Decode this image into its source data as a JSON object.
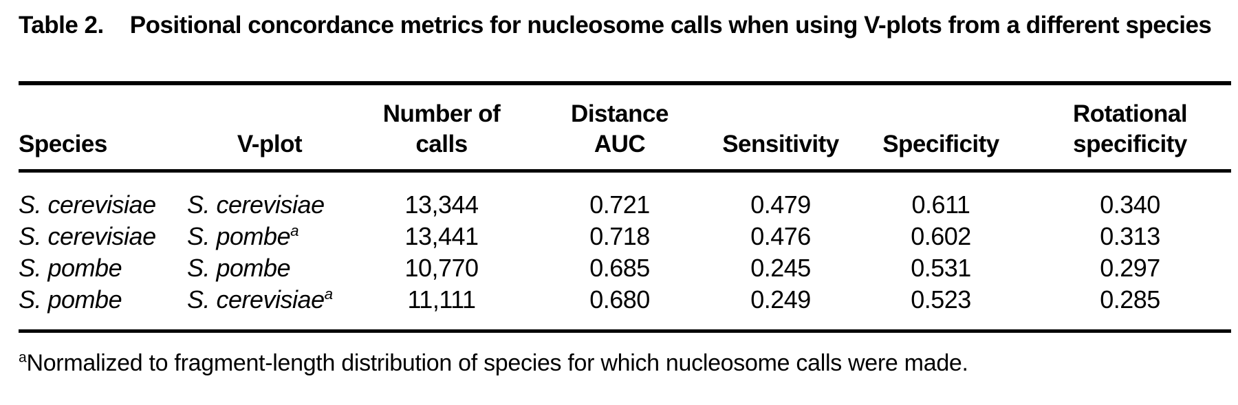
{
  "page": {
    "background_color": "#ffffff",
    "text_color": "#000000"
  },
  "caption": {
    "label": "Table 2.",
    "title": "Positional concordance metrics for nucleosome calls when using V-plots from a different species"
  },
  "table": {
    "columns": [
      "Species",
      "V-plot",
      "Number of calls",
      "Distance AUC",
      "Sensitivity",
      "Specificity",
      "Rotational specificity"
    ],
    "rows": [
      {
        "species": "S. cerevisiae",
        "vplot": "S. cerevisiae",
        "vplot_marker": "",
        "number_of_calls": "13,344",
        "distance_auc": "0.721",
        "sensitivity": "0.479",
        "specificity": "0.611",
        "rotational_specificity": "0.340"
      },
      {
        "species": "S. cerevisiae",
        "vplot": "S. pombe",
        "vplot_marker": "a",
        "number_of_calls": "13,441",
        "distance_auc": "0.718",
        "sensitivity": "0.476",
        "specificity": "0.602",
        "rotational_specificity": "0.313"
      },
      {
        "species": "S. pombe",
        "vplot": "S. pombe",
        "vplot_marker": "",
        "number_of_calls": "10,770",
        "distance_auc": "0.685",
        "sensitivity": "0.245",
        "specificity": "0.531",
        "rotational_specificity": "0.297"
      },
      {
        "species": "S. pombe",
        "vplot": "S. cerevisiae",
        "vplot_marker": "a",
        "number_of_calls": "11,111",
        "distance_auc": "0.680",
        "sensitivity": "0.249",
        "specificity": "0.523",
        "rotational_specificity": "0.285"
      }
    ]
  },
  "footnote": {
    "marker": "a",
    "text": "Normalized to fragment-length distribution of species for which nucleosome calls were made."
  }
}
